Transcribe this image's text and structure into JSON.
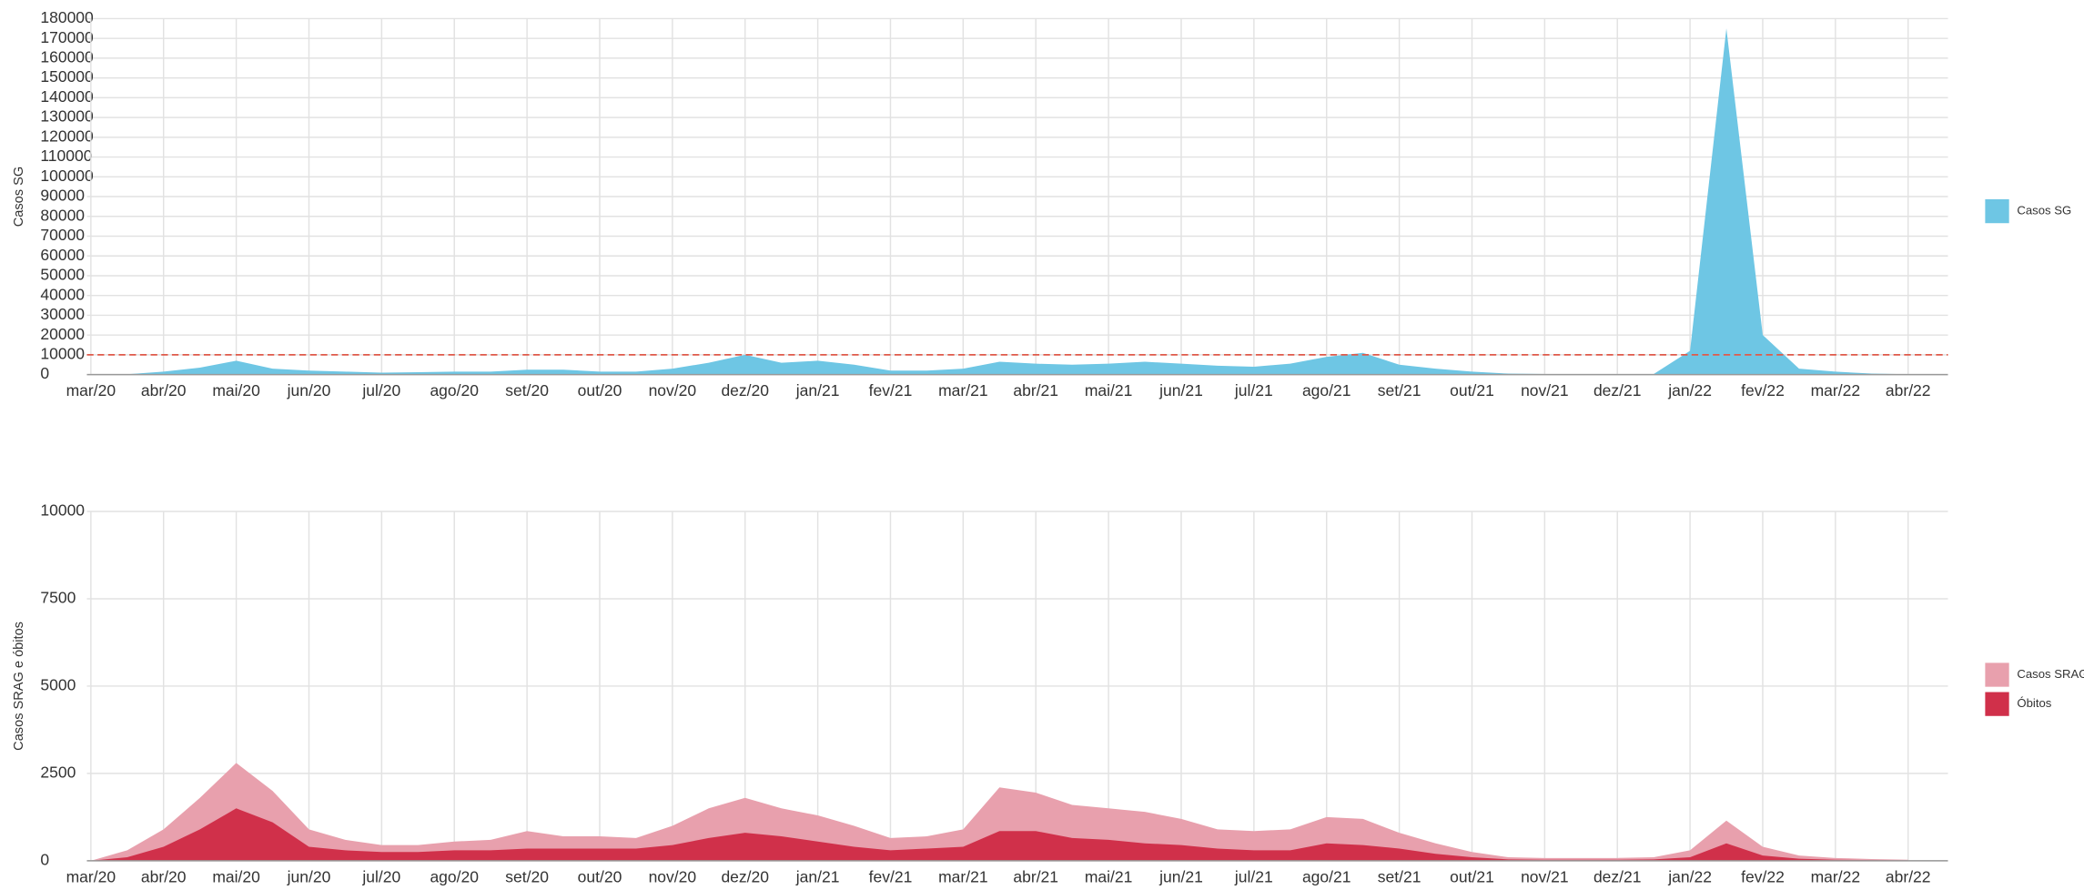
{
  "chart_data": [
    {
      "type": "area",
      "y_label": "Casos SG",
      "categories": [
        "mar/20",
        null,
        "abr/20",
        null,
        "mai/20",
        null,
        "jun/20",
        null,
        "jul/20",
        null,
        "ago/20",
        null,
        "set/20",
        null,
        "out/20",
        null,
        "nov/20",
        null,
        "dez/20",
        null,
        "jan/21",
        null,
        "fev/21",
        null,
        "mar/21",
        null,
        "abr/21",
        null,
        "mai/21",
        null,
        "jun/21",
        null,
        "jul/21",
        null,
        "ago/21",
        null,
        "set/21",
        null,
        "out/21",
        null,
        "nov/21",
        null,
        "dez/21",
        null,
        "jan/22",
        null,
        "fev/22",
        null,
        "mar/22",
        null,
        "abr/22"
      ],
      "series": [
        {
          "name": "Casos SG",
          "color": "#6ec6e4",
          "values": [
            0,
            200,
            1500,
            3500,
            7000,
            3000,
            2000,
            1500,
            1000,
            1200,
            1500,
            1500,
            2500,
            2500,
            1500,
            1500,
            3000,
            6000,
            10000,
            6000,
            7000,
            5000,
            2000,
            2000,
            3000,
            6500,
            5500,
            5000,
            5500,
            6500,
            5500,
            4500,
            4000,
            5500,
            9000,
            11000,
            5000,
            3000,
            1500,
            500,
            300,
            300,
            300,
            300,
            12000,
            175000,
            20000,
            3000,
            1500,
            500,
            200
          ]
        }
      ],
      "reference_line": 10000,
      "reference_color": "#e05a4a",
      "ylim": [
        0,
        180000
      ],
      "yticks": [
        0,
        10000,
        20000,
        30000,
        40000,
        50000,
        60000,
        70000,
        80000,
        90000,
        100000,
        110000,
        120000,
        130000,
        140000,
        150000,
        160000,
        170000,
        180000
      ],
      "grid": true,
      "legend": "right"
    },
    {
      "type": "area",
      "y_label": "Casos SRAG e óbitos",
      "categories": [
        "mar/20",
        null,
        "abr/20",
        null,
        "mai/20",
        null,
        "jun/20",
        null,
        "jul/20",
        null,
        "ago/20",
        null,
        "set/20",
        null,
        "out/20",
        null,
        "nov/20",
        null,
        "dez/20",
        null,
        "jan/21",
        null,
        "fev/21",
        null,
        "mar/21",
        null,
        "abr/21",
        null,
        "mai/21",
        null,
        "jun/21",
        null,
        "jul/21",
        null,
        "ago/21",
        null,
        "set/21",
        null,
        "out/21",
        null,
        "nov/21",
        null,
        "dez/21",
        null,
        "jan/22",
        null,
        "fev/22",
        null,
        "mar/22",
        null,
        "abr/22"
      ],
      "series": [
        {
          "name": "Casos SRAG",
          "color": "#e8a0ad",
          "values": [
            0,
            300,
            900,
            1800,
            2800,
            2000,
            900,
            600,
            450,
            450,
            550,
            600,
            850,
            700,
            700,
            650,
            1000,
            1500,
            1800,
            1500,
            1300,
            1000,
            650,
            700,
            900,
            2100,
            1950,
            1600,
            1500,
            1400,
            1200,
            900,
            850,
            900,
            1250,
            1200,
            800,
            500,
            250,
            100,
            80,
            80,
            80,
            100,
            300,
            1150,
            400,
            150,
            80,
            50,
            30
          ]
        },
        {
          "name": "Óbitos",
          "color": "#d0304a",
          "values": [
            0,
            100,
            400,
            900,
            1500,
            1100,
            400,
            300,
            250,
            250,
            300,
            300,
            350,
            350,
            350,
            350,
            450,
            650,
            800,
            700,
            550,
            400,
            300,
            350,
            400,
            850,
            850,
            650,
            600,
            500,
            450,
            350,
            300,
            300,
            500,
            450,
            350,
            200,
            100,
            40,
            30,
            30,
            30,
            40,
            100,
            500,
            150,
            60,
            30,
            20,
            10
          ]
        }
      ],
      "ylim": [
        0,
        10000
      ],
      "yticks": [
        0,
        2500,
        5000,
        7500,
        10000
      ],
      "grid": true,
      "legend": "right"
    }
  ]
}
